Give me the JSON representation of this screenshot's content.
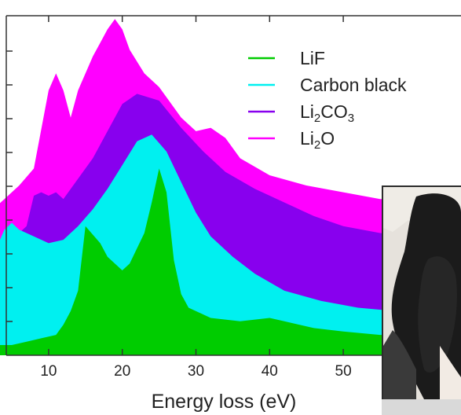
{
  "chart_data": {
    "type": "area",
    "title": "",
    "xlabel": "Energy loss (eV)",
    "ylabel": "",
    "xlim": [
      3,
      63
    ],
    "ylim": [
      0,
      100
    ],
    "xticks": [
      10,
      20,
      30,
      40,
      50
    ],
    "grid": false,
    "legend_position": "top-right",
    "series": [
      {
        "name": "Li2O",
        "legend_label": {
          "base": "Li",
          "sub": "2",
          "rest": "O"
        },
        "color": "#ff00ff",
        "points": [
          [
            3,
            44
          ],
          [
            6,
            50
          ],
          [
            8,
            55
          ],
          [
            10,
            78
          ],
          [
            11,
            83
          ],
          [
            12,
            78
          ],
          [
            13,
            70
          ],
          [
            14,
            78
          ],
          [
            16,
            88
          ],
          [
            18,
            96
          ],
          [
            19,
            99
          ],
          [
            20,
            96
          ],
          [
            21,
            90
          ],
          [
            23,
            83
          ],
          [
            25,
            79
          ],
          [
            28,
            70
          ],
          [
            30,
            66
          ],
          [
            32,
            67
          ],
          [
            34,
            64
          ],
          [
            36,
            58
          ],
          [
            40,
            53
          ],
          [
            45,
            50
          ],
          [
            50,
            48
          ],
          [
            55,
            46
          ],
          [
            60,
            46
          ],
          [
            63,
            46
          ]
        ]
      },
      {
        "name": "Li2CO3",
        "legend_label": {
          "base": "Li",
          "sub": "2",
          "rest": "CO",
          "sub2": "3"
        },
        "color": "#8800ee",
        "points": [
          [
            3,
            32
          ],
          [
            5,
            34
          ],
          [
            7,
            38
          ],
          [
            8,
            47
          ],
          [
            9,
            48
          ],
          [
            10,
            47
          ],
          [
            11,
            48
          ],
          [
            12,
            46
          ],
          [
            14,
            52
          ],
          [
            16,
            58
          ],
          [
            18,
            66
          ],
          [
            20,
            74
          ],
          [
            22,
            77
          ],
          [
            25,
            75
          ],
          [
            28,
            67
          ],
          [
            31,
            60
          ],
          [
            34,
            54
          ],
          [
            38,
            49
          ],
          [
            42,
            45
          ],
          [
            46,
            41
          ],
          [
            50,
            38
          ],
          [
            55,
            36
          ],
          [
            60,
            35
          ],
          [
            63,
            35
          ]
        ]
      },
      {
        "name": "Carbon black",
        "color": "#00f0f0",
        "points": [
          [
            3,
            32
          ],
          [
            4,
            37
          ],
          [
            5,
            39
          ],
          [
            6,
            37
          ],
          [
            8,
            35
          ],
          [
            10,
            33
          ],
          [
            12,
            34
          ],
          [
            14,
            38
          ],
          [
            16,
            43
          ],
          [
            18,
            49
          ],
          [
            20,
            56
          ],
          [
            22,
            63
          ],
          [
            24,
            65
          ],
          [
            26,
            60
          ],
          [
            28,
            51
          ],
          [
            30,
            42
          ],
          [
            32,
            35
          ],
          [
            35,
            29
          ],
          [
            38,
            24
          ],
          [
            42,
            19
          ],
          [
            47,
            16
          ],
          [
            52,
            14
          ],
          [
            57,
            13
          ],
          [
            63,
            12
          ]
        ]
      },
      {
        "name": "LiF",
        "color": "#00cc00",
        "points": [
          [
            3,
            3
          ],
          [
            5,
            3
          ],
          [
            7,
            4
          ],
          [
            9,
            5
          ],
          [
            11,
            6
          ],
          [
            12,
            9
          ],
          [
            13,
            13
          ],
          [
            14,
            19
          ],
          [
            15,
            38
          ],
          [
            17,
            33
          ],
          [
            18,
            29
          ],
          [
            19,
            27
          ],
          [
            20,
            25
          ],
          [
            21,
            27
          ],
          [
            23,
            36
          ],
          [
            24,
            45
          ],
          [
            25,
            55
          ],
          [
            26,
            48
          ],
          [
            27,
            28
          ],
          [
            28,
            18
          ],
          [
            29,
            14
          ],
          [
            32,
            11
          ],
          [
            36,
            10
          ],
          [
            40,
            11
          ],
          [
            42,
            10
          ],
          [
            46,
            8
          ],
          [
            50,
            7
          ],
          [
            55,
            6
          ],
          [
            60,
            6
          ],
          [
            63,
            6
          ]
        ]
      }
    ]
  }
}
